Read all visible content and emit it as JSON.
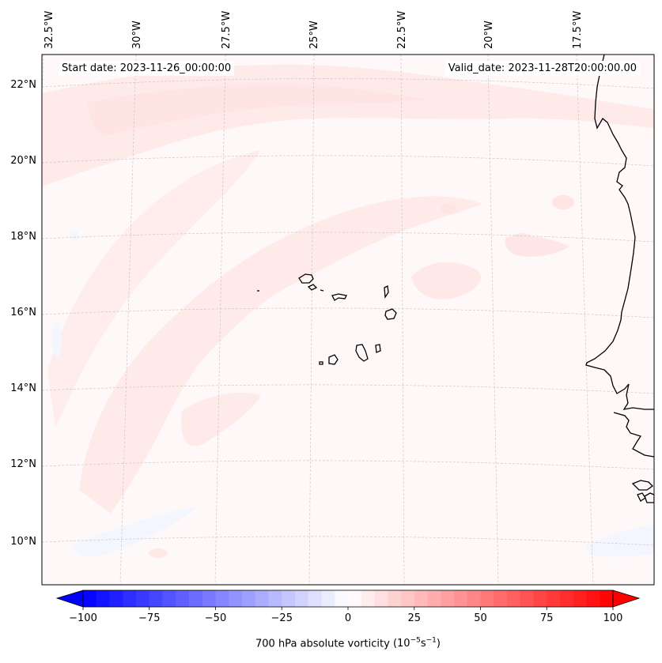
{
  "map": {
    "variable": "700 hPa absolute vorticity",
    "units_base": "(10",
    "units_exp1": "−5",
    "units_mid": "s",
    "units_exp2": "−1",
    "units_close": ")",
    "start_date": "Start date: 2023-11-26_00:00:00",
    "valid_date": "Valid_date: 2023-11-28T20:00:00.00",
    "lon_labels": [
      "32.5°W",
      "30°W",
      "27.5°W",
      "25°W",
      "22.5°W",
      "20°W",
      "17.5°W"
    ],
    "lat_labels": [
      "22°N",
      "20°N",
      "18°N",
      "16°N",
      "14°N",
      "12°N",
      "10°N"
    ],
    "islands": [
      "Santo Antão",
      "São Vicente",
      "Santa Luzia",
      "São Nicolau",
      "Sal",
      "Boa Vista",
      "Maio",
      "Santiago",
      "Fogo",
      "Brava"
    ],
    "coast": "West African coastline (Mauritania, Senegal, Gambia, Guinea-Bissau)"
  },
  "colorbar": {
    "min": -100,
    "max": 100,
    "step": 5,
    "tick_labels": [
      "−100",
      "−75",
      "−50",
      "−25",
      "0",
      "25",
      "50",
      "75",
      "100"
    ],
    "extend": "both",
    "colormap": "bwr",
    "color_negative": "#0000ff",
    "color_zero": "#ffffff",
    "color_positive": "#ff0000"
  },
  "colors": {
    "background": "#fff8f8",
    "positive_band": "#ffeaea",
    "negative_patch": "#f4f6ff",
    "gridline": "#c8c8c8",
    "coast": "#000000"
  }
}
